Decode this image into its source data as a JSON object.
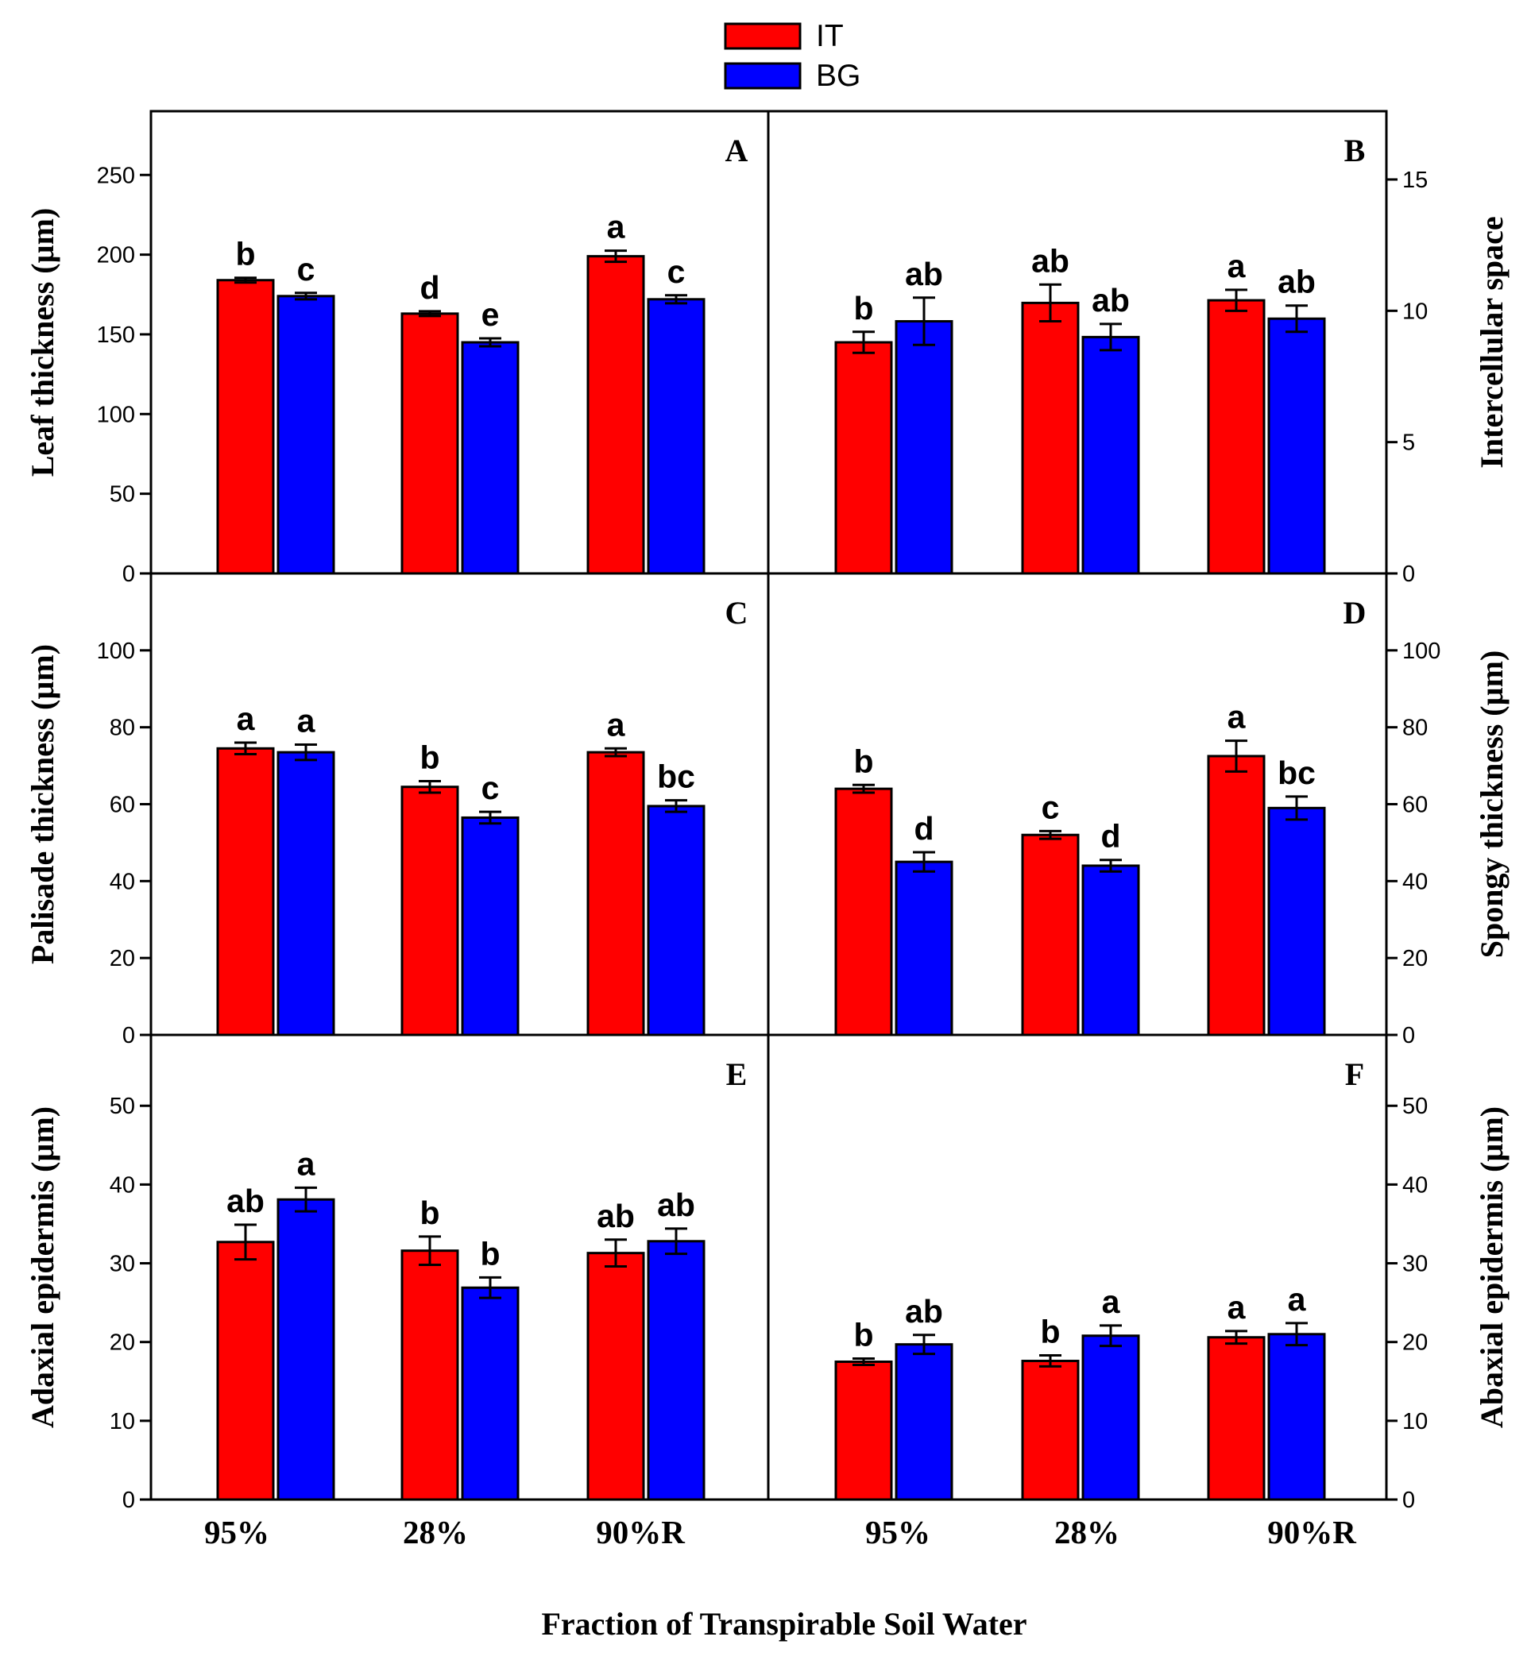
{
  "chart_data": {
    "type": "bar",
    "xlabel": "Fraction of Transpirable Soil Water",
    "legend": [
      {
        "name": "IT",
        "color": "#ff0000"
      },
      {
        "name": "BG",
        "color": "#0000ff"
      }
    ],
    "legend_position": "top-center",
    "panels": [
      {
        "id": "A",
        "ylabel": "Leaf thickness (µm)",
        "axis_side": "left",
        "ylim": [
          0,
          290
        ],
        "yticks": [
          0,
          50,
          100,
          150,
          200,
          250
        ],
        "categories": [
          "95%",
          "28%",
          "90%R"
        ],
        "series": [
          {
            "name": "IT",
            "values": [
              184,
              163,
              199
            ],
            "errors": [
              1.5,
              1.5,
              3.5
            ],
            "letters": [
              "b",
              "d",
              "a"
            ]
          },
          {
            "name": "BG",
            "values": [
              174,
              145,
              172
            ],
            "errors": [
              2,
              2.5,
              2.5
            ],
            "letters": [
              "c",
              "e",
              "c"
            ]
          }
        ]
      },
      {
        "id": "B",
        "ylabel": "Intercellular space",
        "axis_side": "right",
        "ylim": [
          0,
          17.6
        ],
        "yticks": [
          0,
          5,
          10,
          15
        ],
        "categories": [
          "95%",
          "28%",
          "90%R"
        ],
        "series": [
          {
            "name": "IT",
            "values": [
              8.8,
              10.3,
              10.4
            ],
            "errors": [
              0.4,
              0.7,
              0.4
            ],
            "letters": [
              "b",
              "ab",
              "a"
            ]
          },
          {
            "name": "BG",
            "values": [
              9.6,
              9.0,
              9.7
            ],
            "errors": [
              0.9,
              0.5,
              0.5
            ],
            "letters": [
              "ab",
              "ab",
              "ab"
            ]
          }
        ]
      },
      {
        "id": "C",
        "ylabel": "Palisade thickness (µm)",
        "axis_side": "left",
        "ylim": [
          0,
          120
        ],
        "yticks": [
          0,
          20,
          40,
          60,
          80,
          100
        ],
        "categories": [
          "95%",
          "28%",
          "90%R"
        ],
        "series": [
          {
            "name": "IT",
            "values": [
              74.5,
              64.5,
              73.5
            ],
            "errors": [
              1.5,
              1.5,
              1
            ],
            "letters": [
              "a",
              "b",
              "a"
            ]
          },
          {
            "name": "BG",
            "values": [
              73.5,
              56.5,
              59.5
            ],
            "errors": [
              2,
              1.5,
              1.5
            ],
            "letters": [
              "a",
              "c",
              "bc"
            ]
          }
        ]
      },
      {
        "id": "D",
        "ylabel": "Spongy thickness (µm)",
        "axis_side": "right",
        "ylim": [
          0,
          120
        ],
        "yticks": [
          0,
          20,
          40,
          60,
          80,
          100
        ],
        "categories": [
          "95%",
          "28%",
          "90%R"
        ],
        "series": [
          {
            "name": "IT",
            "values": [
              64,
              52,
              72.5
            ],
            "errors": [
              1,
              1,
              4
            ],
            "letters": [
              "b",
              "c",
              "a"
            ]
          },
          {
            "name": "BG",
            "values": [
              45,
              44,
              59
            ],
            "errors": [
              2.5,
              1.5,
              3
            ],
            "letters": [
              "d",
              "d",
              "bc"
            ]
          }
        ]
      },
      {
        "id": "E",
        "ylabel": "Adaxial epidermis (µm)",
        "axis_side": "left",
        "ylim": [
          0,
          59
        ],
        "yticks": [
          0,
          10,
          20,
          30,
          40,
          50
        ],
        "categories": [
          "95%",
          "28%",
          "90%R"
        ],
        "series": [
          {
            "name": "IT",
            "values": [
              32.7,
              31.6,
              31.3
            ],
            "errors": [
              2.2,
              1.8,
              1.7
            ],
            "letters": [
              "ab",
              "b",
              "ab"
            ]
          },
          {
            "name": "BG",
            "values": [
              38.1,
              26.9,
              32.8
            ],
            "errors": [
              1.5,
              1.3,
              1.6
            ],
            "letters": [
              "a",
              "b",
              "ab"
            ]
          }
        ]
      },
      {
        "id": "F",
        "ylabel": "Abaxial epidermis (µm)",
        "axis_side": "right",
        "ylim": [
          0,
          59
        ],
        "yticks": [
          0,
          10,
          20,
          30,
          40,
          50
        ],
        "categories": [
          "95%",
          "28%",
          "90%R"
        ],
        "series": [
          {
            "name": "IT",
            "values": [
              17.5,
              17.6,
              20.6
            ],
            "errors": [
              0.4,
              0.7,
              0.8
            ],
            "letters": [
              "b",
              "b",
              "a"
            ]
          },
          {
            "name": "BG",
            "values": [
              19.7,
              20.8,
              21.0
            ],
            "errors": [
              1.2,
              1.3,
              1.4
            ],
            "letters": [
              "ab",
              "a",
              "a"
            ]
          }
        ]
      }
    ]
  }
}
